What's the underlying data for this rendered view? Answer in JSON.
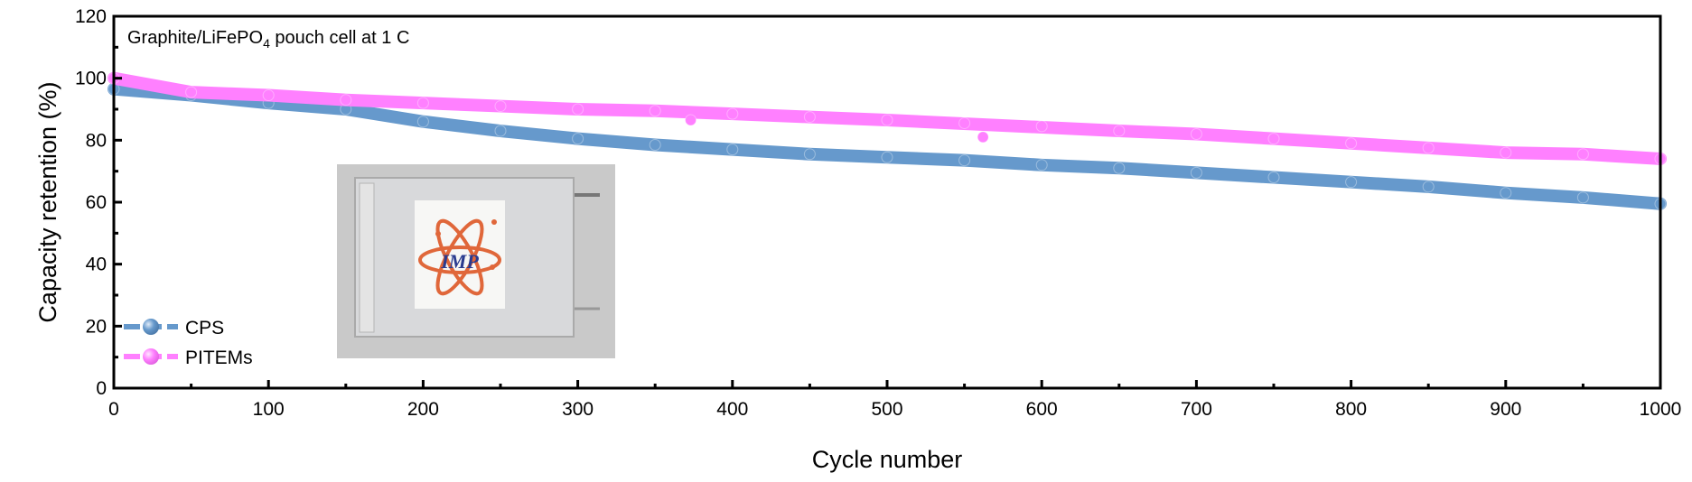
{
  "chart_data": {
    "type": "scatter",
    "annotation": {
      "main": "Graphite/LiFePO",
      "sub": "4",
      "rest": " pouch cell at 1 C"
    },
    "xlabel": "Cycle number",
    "ylabel": "Capacity retention (%)",
    "xlim": [
      0,
      1000
    ],
    "ylim": [
      0,
      120
    ],
    "xticks": [
      0,
      100,
      200,
      300,
      400,
      500,
      600,
      700,
      800,
      900,
      1000
    ],
    "yticks": [
      0,
      20,
      40,
      60,
      80,
      100,
      120
    ],
    "grid": false,
    "legend_position": "bottom-left",
    "series": [
      {
        "name": "CPS",
        "color": "#6699cc",
        "x": [
          0,
          50,
          100,
          150,
          200,
          250,
          300,
          350,
          400,
          450,
          500,
          550,
          600,
          650,
          700,
          750,
          800,
          850,
          900,
          950,
          1000
        ],
        "y": [
          96.5,
          94.5,
          92,
          90,
          86,
          83,
          80.5,
          78.5,
          77,
          75.5,
          74.5,
          73.5,
          72,
          71,
          69.5,
          68,
          66.5,
          65,
          63,
          61.5,
          59.5
        ]
      },
      {
        "name": "PITEMs",
        "color": "#ff80ff",
        "x": [
          0,
          50,
          100,
          150,
          200,
          250,
          300,
          350,
          373,
          400,
          450,
          500,
          550,
          562,
          600,
          650,
          700,
          750,
          800,
          850,
          900,
          950,
          1000
        ],
        "y": [
          100,
          95.5,
          94.5,
          93,
          92,
          91,
          90,
          89.5,
          86.5,
          88.5,
          87.5,
          86.5,
          85.5,
          81,
          84.5,
          83,
          82,
          80.5,
          79,
          77.5,
          76,
          75.5,
          74
        ]
      }
    ],
    "inset": {
      "type": "photo",
      "description_label": "IMP"
    }
  }
}
